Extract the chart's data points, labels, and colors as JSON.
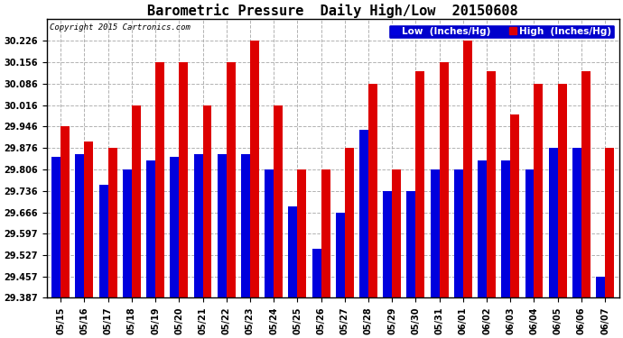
{
  "title": "Barometric Pressure  Daily High/Low  20150608",
  "copyright": "Copyright 2015 Cartronics.com",
  "legend_low": "Low  (Inches/Hg)",
  "legend_high": "High  (Inches/Hg)",
  "dates": [
    "05/15",
    "05/16",
    "05/17",
    "05/18",
    "05/19",
    "05/20",
    "05/21",
    "05/22",
    "05/23",
    "05/24",
    "05/25",
    "05/26",
    "05/27",
    "05/28",
    "05/29",
    "05/30",
    "05/31",
    "06/01",
    "06/02",
    "06/03",
    "06/04",
    "06/05",
    "06/06",
    "06/07"
  ],
  "low": [
    29.846,
    29.856,
    29.756,
    29.806,
    29.836,
    29.846,
    29.856,
    29.856,
    29.856,
    29.806,
    29.686,
    29.546,
    29.666,
    29.936,
    29.736,
    29.736,
    29.806,
    29.806,
    29.836,
    29.836,
    29.806,
    29.876,
    29.876,
    29.456
  ],
  "high": [
    29.946,
    29.896,
    29.876,
    30.016,
    30.156,
    30.156,
    30.016,
    30.156,
    30.226,
    30.016,
    29.806,
    29.806,
    29.876,
    30.086,
    29.806,
    30.126,
    30.156,
    30.226,
    30.126,
    29.986,
    30.086,
    30.086,
    30.126,
    29.876
  ],
  "ylim_low": 29.387,
  "ylim_high": 30.296,
  "yticks": [
    29.387,
    29.457,
    29.527,
    29.597,
    29.666,
    29.736,
    29.806,
    29.876,
    29.946,
    30.016,
    30.086,
    30.156,
    30.226
  ],
  "color_low": "#0000dd",
  "color_high": "#dd0000",
  "bg_color": "#ffffff",
  "grid_color": "#aaaaaa",
  "bar_width": 0.38,
  "title_fontsize": 11,
  "tick_fontsize": 7,
  "legend_fontsize": 7.5
}
